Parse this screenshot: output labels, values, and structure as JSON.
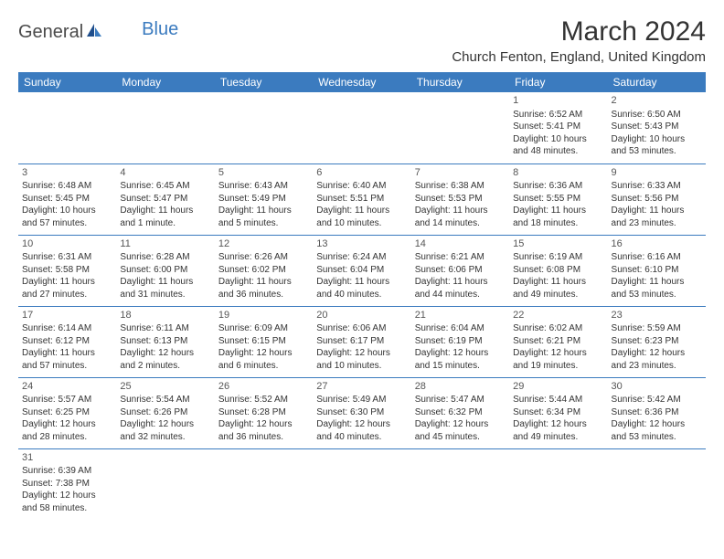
{
  "logo": {
    "part1": "General",
    "part2": "Blue"
  },
  "title": "March 2024",
  "location": "Church Fenton, England, United Kingdom",
  "colors": {
    "header_bg": "#3b7bbf",
    "header_text": "#ffffff",
    "body_text": "#333333"
  },
  "weekdays": [
    "Sunday",
    "Monday",
    "Tuesday",
    "Wednesday",
    "Thursday",
    "Friday",
    "Saturday"
  ],
  "weeks": [
    [
      null,
      null,
      null,
      null,
      null,
      {
        "n": "1",
        "sunrise": "Sunrise: 6:52 AM",
        "sunset": "Sunset: 5:41 PM",
        "day1": "Daylight: 10 hours",
        "day2": "and 48 minutes."
      },
      {
        "n": "2",
        "sunrise": "Sunrise: 6:50 AM",
        "sunset": "Sunset: 5:43 PM",
        "day1": "Daylight: 10 hours",
        "day2": "and 53 minutes."
      }
    ],
    [
      {
        "n": "3",
        "sunrise": "Sunrise: 6:48 AM",
        "sunset": "Sunset: 5:45 PM",
        "day1": "Daylight: 10 hours",
        "day2": "and 57 minutes."
      },
      {
        "n": "4",
        "sunrise": "Sunrise: 6:45 AM",
        "sunset": "Sunset: 5:47 PM",
        "day1": "Daylight: 11 hours",
        "day2": "and 1 minute."
      },
      {
        "n": "5",
        "sunrise": "Sunrise: 6:43 AM",
        "sunset": "Sunset: 5:49 PM",
        "day1": "Daylight: 11 hours",
        "day2": "and 5 minutes."
      },
      {
        "n": "6",
        "sunrise": "Sunrise: 6:40 AM",
        "sunset": "Sunset: 5:51 PM",
        "day1": "Daylight: 11 hours",
        "day2": "and 10 minutes."
      },
      {
        "n": "7",
        "sunrise": "Sunrise: 6:38 AM",
        "sunset": "Sunset: 5:53 PM",
        "day1": "Daylight: 11 hours",
        "day2": "and 14 minutes."
      },
      {
        "n": "8",
        "sunrise": "Sunrise: 6:36 AM",
        "sunset": "Sunset: 5:55 PM",
        "day1": "Daylight: 11 hours",
        "day2": "and 18 minutes."
      },
      {
        "n": "9",
        "sunrise": "Sunrise: 6:33 AM",
        "sunset": "Sunset: 5:56 PM",
        "day1": "Daylight: 11 hours",
        "day2": "and 23 minutes."
      }
    ],
    [
      {
        "n": "10",
        "sunrise": "Sunrise: 6:31 AM",
        "sunset": "Sunset: 5:58 PM",
        "day1": "Daylight: 11 hours",
        "day2": "and 27 minutes."
      },
      {
        "n": "11",
        "sunrise": "Sunrise: 6:28 AM",
        "sunset": "Sunset: 6:00 PM",
        "day1": "Daylight: 11 hours",
        "day2": "and 31 minutes."
      },
      {
        "n": "12",
        "sunrise": "Sunrise: 6:26 AM",
        "sunset": "Sunset: 6:02 PM",
        "day1": "Daylight: 11 hours",
        "day2": "and 36 minutes."
      },
      {
        "n": "13",
        "sunrise": "Sunrise: 6:24 AM",
        "sunset": "Sunset: 6:04 PM",
        "day1": "Daylight: 11 hours",
        "day2": "and 40 minutes."
      },
      {
        "n": "14",
        "sunrise": "Sunrise: 6:21 AM",
        "sunset": "Sunset: 6:06 PM",
        "day1": "Daylight: 11 hours",
        "day2": "and 44 minutes."
      },
      {
        "n": "15",
        "sunrise": "Sunrise: 6:19 AM",
        "sunset": "Sunset: 6:08 PM",
        "day1": "Daylight: 11 hours",
        "day2": "and 49 minutes."
      },
      {
        "n": "16",
        "sunrise": "Sunrise: 6:16 AM",
        "sunset": "Sunset: 6:10 PM",
        "day1": "Daylight: 11 hours",
        "day2": "and 53 minutes."
      }
    ],
    [
      {
        "n": "17",
        "sunrise": "Sunrise: 6:14 AM",
        "sunset": "Sunset: 6:12 PM",
        "day1": "Daylight: 11 hours",
        "day2": "and 57 minutes."
      },
      {
        "n": "18",
        "sunrise": "Sunrise: 6:11 AM",
        "sunset": "Sunset: 6:13 PM",
        "day1": "Daylight: 12 hours",
        "day2": "and 2 minutes."
      },
      {
        "n": "19",
        "sunrise": "Sunrise: 6:09 AM",
        "sunset": "Sunset: 6:15 PM",
        "day1": "Daylight: 12 hours",
        "day2": "and 6 minutes."
      },
      {
        "n": "20",
        "sunrise": "Sunrise: 6:06 AM",
        "sunset": "Sunset: 6:17 PM",
        "day1": "Daylight: 12 hours",
        "day2": "and 10 minutes."
      },
      {
        "n": "21",
        "sunrise": "Sunrise: 6:04 AM",
        "sunset": "Sunset: 6:19 PM",
        "day1": "Daylight: 12 hours",
        "day2": "and 15 minutes."
      },
      {
        "n": "22",
        "sunrise": "Sunrise: 6:02 AM",
        "sunset": "Sunset: 6:21 PM",
        "day1": "Daylight: 12 hours",
        "day2": "and 19 minutes."
      },
      {
        "n": "23",
        "sunrise": "Sunrise: 5:59 AM",
        "sunset": "Sunset: 6:23 PM",
        "day1": "Daylight: 12 hours",
        "day2": "and 23 minutes."
      }
    ],
    [
      {
        "n": "24",
        "sunrise": "Sunrise: 5:57 AM",
        "sunset": "Sunset: 6:25 PM",
        "day1": "Daylight: 12 hours",
        "day2": "and 28 minutes."
      },
      {
        "n": "25",
        "sunrise": "Sunrise: 5:54 AM",
        "sunset": "Sunset: 6:26 PM",
        "day1": "Daylight: 12 hours",
        "day2": "and 32 minutes."
      },
      {
        "n": "26",
        "sunrise": "Sunrise: 5:52 AM",
        "sunset": "Sunset: 6:28 PM",
        "day1": "Daylight: 12 hours",
        "day2": "and 36 minutes."
      },
      {
        "n": "27",
        "sunrise": "Sunrise: 5:49 AM",
        "sunset": "Sunset: 6:30 PM",
        "day1": "Daylight: 12 hours",
        "day2": "and 40 minutes."
      },
      {
        "n": "28",
        "sunrise": "Sunrise: 5:47 AM",
        "sunset": "Sunset: 6:32 PM",
        "day1": "Daylight: 12 hours",
        "day2": "and 45 minutes."
      },
      {
        "n": "29",
        "sunrise": "Sunrise: 5:44 AM",
        "sunset": "Sunset: 6:34 PM",
        "day1": "Daylight: 12 hours",
        "day2": "and 49 minutes."
      },
      {
        "n": "30",
        "sunrise": "Sunrise: 5:42 AM",
        "sunset": "Sunset: 6:36 PM",
        "day1": "Daylight: 12 hours",
        "day2": "and 53 minutes."
      }
    ],
    [
      {
        "n": "31",
        "sunrise": "Sunrise: 6:39 AM",
        "sunset": "Sunset: 7:38 PM",
        "day1": "Daylight: 12 hours",
        "day2": "and 58 minutes."
      },
      null,
      null,
      null,
      null,
      null,
      null
    ]
  ]
}
